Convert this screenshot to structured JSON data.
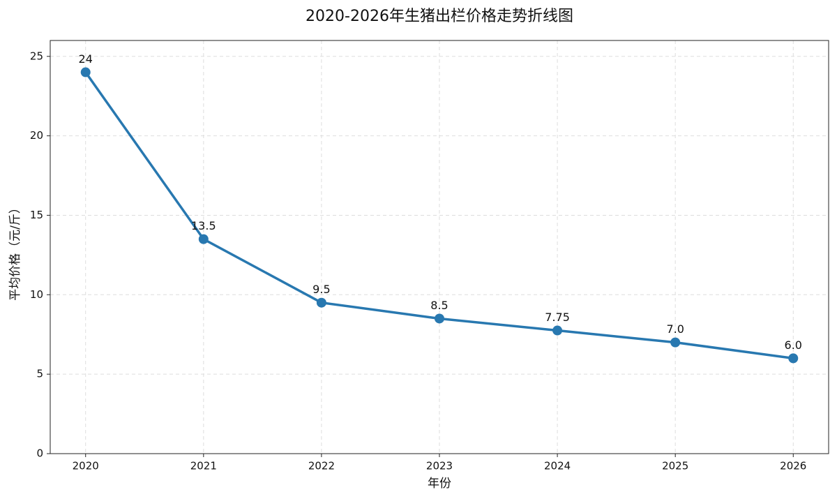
{
  "chart_data": {
    "type": "line",
    "title": "2020-2026年生猪出栏价格走势折线图",
    "x_label": "年份",
    "y_label": "平均价格（元/斤）",
    "x": [
      2020,
      2021,
      2022,
      2023,
      2024,
      2025,
      2026
    ],
    "series": [
      {
        "color": "#2878b0",
        "values": [
          24,
          13.5,
          9.5,
          8.5,
          7.75,
          7,
          6
        ],
        "value_labels": [
          "24",
          "13.5",
          "9.5",
          "8.5",
          "7.75",
          "7.0",
          "6.0"
        ]
      }
    ],
    "xlim": [
      2019.7,
      2026.3
    ],
    "xticks": [
      2020,
      2021,
      2022,
      2023,
      2024,
      2025,
      2026
    ],
    "ylim": [
      0,
      26
    ],
    "yticks": [
      0,
      5,
      10,
      15,
      20,
      25
    ],
    "grid": true
  }
}
